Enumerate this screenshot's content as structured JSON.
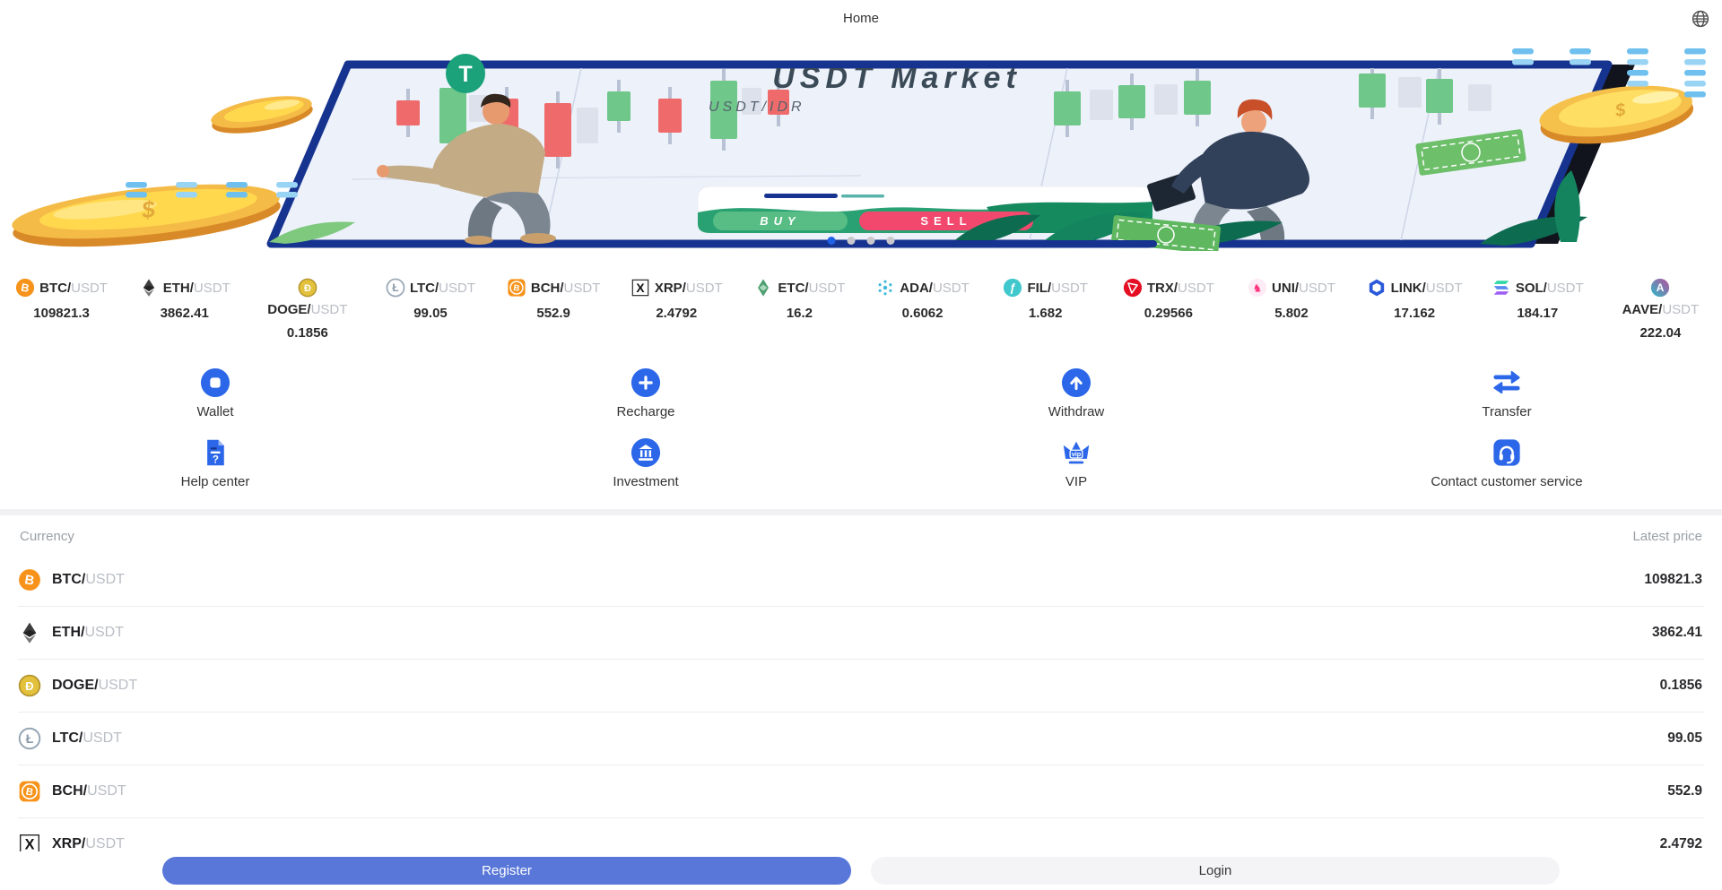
{
  "pair_separator": "/",
  "header": {
    "title": "Home"
  },
  "banner": {
    "title": "USDT Market",
    "subtitle": "USDT/IDR",
    "buy_label": "BUY",
    "sell_label": "SELL",
    "coin_symbol": "$",
    "logo_letter": "T",
    "carousel": {
      "count": 4,
      "active_index": 0
    }
  },
  "ticker": {
    "items": [
      {
        "base": "BTC",
        "quote": "USDT",
        "price": "109821.3",
        "icon": "btc"
      },
      {
        "base": "ETH",
        "quote": "USDT",
        "price": "3862.41",
        "icon": "eth"
      },
      {
        "base": "DOGE",
        "quote": "USDT",
        "price": "0.1856",
        "icon": "doge"
      },
      {
        "base": "LTC",
        "quote": "USDT",
        "price": "99.05",
        "icon": "ltc"
      },
      {
        "base": "BCH",
        "quote": "USDT",
        "price": "552.9",
        "icon": "bch"
      },
      {
        "base": "XRP",
        "quote": "USDT",
        "price": "2.4792",
        "icon": "xrp"
      },
      {
        "base": "ETC",
        "quote": "USDT",
        "price": "16.2",
        "icon": "etc"
      },
      {
        "base": "ADA",
        "quote": "USDT",
        "price": "0.6062",
        "icon": "ada"
      },
      {
        "base": "FIL",
        "quote": "USDT",
        "price": "1.682",
        "icon": "fil"
      },
      {
        "base": "TRX",
        "quote": "USDT",
        "price": "0.29566",
        "icon": "trx"
      },
      {
        "base": "UNI",
        "quote": "USDT",
        "price": "5.802",
        "icon": "uni"
      },
      {
        "base": "LINK",
        "quote": "USDT",
        "price": "17.162",
        "icon": "link"
      },
      {
        "base": "SOL",
        "quote": "USDT",
        "price": "184.17",
        "icon": "sol"
      },
      {
        "base": "AAVE",
        "quote": "USDT",
        "price": "222.04",
        "icon": "aave"
      }
    ]
  },
  "quick_actions": {
    "row1": [
      {
        "label": "Wallet",
        "icon": "wallet"
      },
      {
        "label": "Recharge",
        "icon": "recharge"
      },
      {
        "label": "Withdraw",
        "icon": "withdraw"
      },
      {
        "label": "Transfer",
        "icon": "transfer"
      }
    ],
    "row2": [
      {
        "label": "Help center",
        "icon": "help-center"
      },
      {
        "label": "Investment",
        "icon": "investment"
      },
      {
        "label": "VIP",
        "icon": "vip"
      },
      {
        "label": "Contact customer service",
        "icon": "customer-service"
      }
    ]
  },
  "market_table": {
    "currency_header": "Currency",
    "price_header": "Latest price",
    "rows": [
      {
        "base": "BTC",
        "quote": "USDT",
        "price": "109821.3",
        "icon": "btc"
      },
      {
        "base": "ETH",
        "quote": "USDT",
        "price": "3862.41",
        "icon": "eth"
      },
      {
        "base": "DOGE",
        "quote": "USDT",
        "price": "0.1856",
        "icon": "doge"
      },
      {
        "base": "LTC",
        "quote": "USDT",
        "price": "99.05",
        "icon": "ltc"
      },
      {
        "base": "BCH",
        "quote": "USDT",
        "price": "552.9",
        "icon": "bch"
      },
      {
        "base": "XRP",
        "quote": "USDT",
        "price": "2.4792",
        "icon": "xrp"
      }
    ]
  },
  "footer": {
    "register_label": "Register",
    "login_label": "Login"
  },
  "colors": {
    "accent_blue": "#2b67e8",
    "register_button_blue": "#5877d8",
    "login_button_bg": "#f4f4f6",
    "buy_green": "#57bd84",
    "sell_red": "#f2486e",
    "active_dot_blue": "#1f62e6",
    "banner_bezel_navy": "#16338f"
  }
}
